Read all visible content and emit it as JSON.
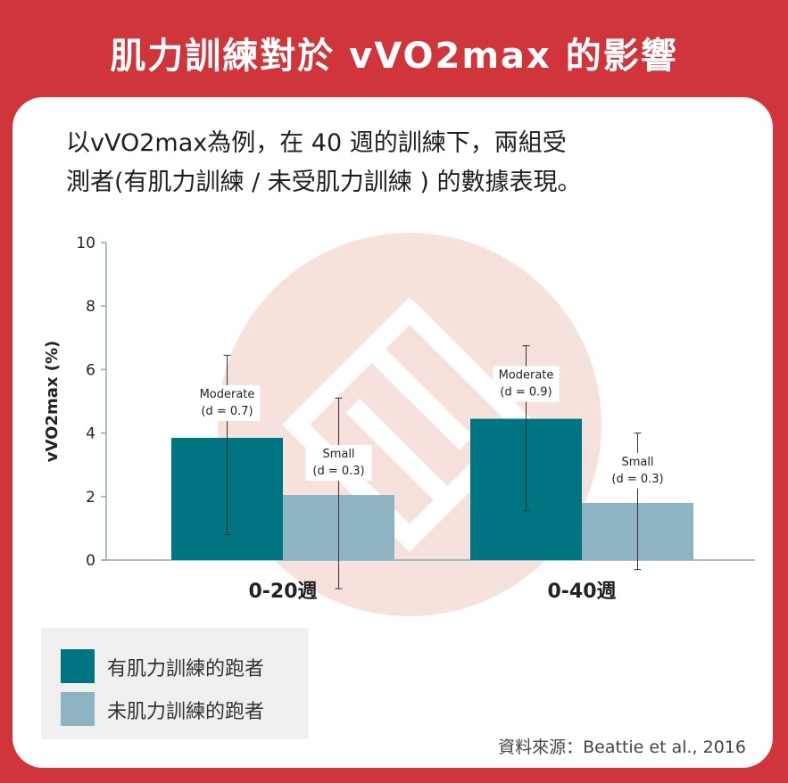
{
  "header": {
    "title": "肌力訓練對於 vVO2max 的影響"
  },
  "subtitle": {
    "line1": "以vVO2max為例，在 40 週的訓練下，兩組受",
    "line2": "測者(有肌力訓練 / 未受肌力訓練 ) 的數據表現。"
  },
  "chart_data": {
    "type": "bar",
    "categories": [
      "0-20週",
      "0-40週"
    ],
    "series": [
      {
        "name": "有肌力訓練的跑者",
        "color": "#007582",
        "values": [
          3.85,
          4.45
        ],
        "err_low": [
          0.8,
          1.55
        ],
        "err_high": [
          6.45,
          6.75
        ]
      },
      {
        "name": "未肌力訓練的跑者",
        "color": "#8eb4c3",
        "values": [
          2.05,
          1.8
        ],
        "err_low": [
          -0.9,
          -0.3
        ],
        "err_high": [
          5.1,
          4.0
        ]
      }
    ],
    "annotations": [
      [
        "Moderate",
        "(d = 0.7)"
      ],
      [
        "Small",
        "(d = 0.3)"
      ],
      [
        "Moderate",
        "(d = 0.9)"
      ],
      [
        "Small",
        "(d = 0.3)"
      ]
    ],
    "ylabel": "vVO2max (%)",
    "ylim": [
      0,
      10
    ],
    "yticks": [
      0,
      2,
      4,
      6,
      8,
      10
    ],
    "grid": false,
    "legend_position": "bottom-left"
  },
  "source": {
    "text": "資料來源：Beattie et al., 2016"
  },
  "colors": {
    "background": "#d0353b",
    "card": "#ffffff",
    "watermark": "#f6ddd8"
  }
}
